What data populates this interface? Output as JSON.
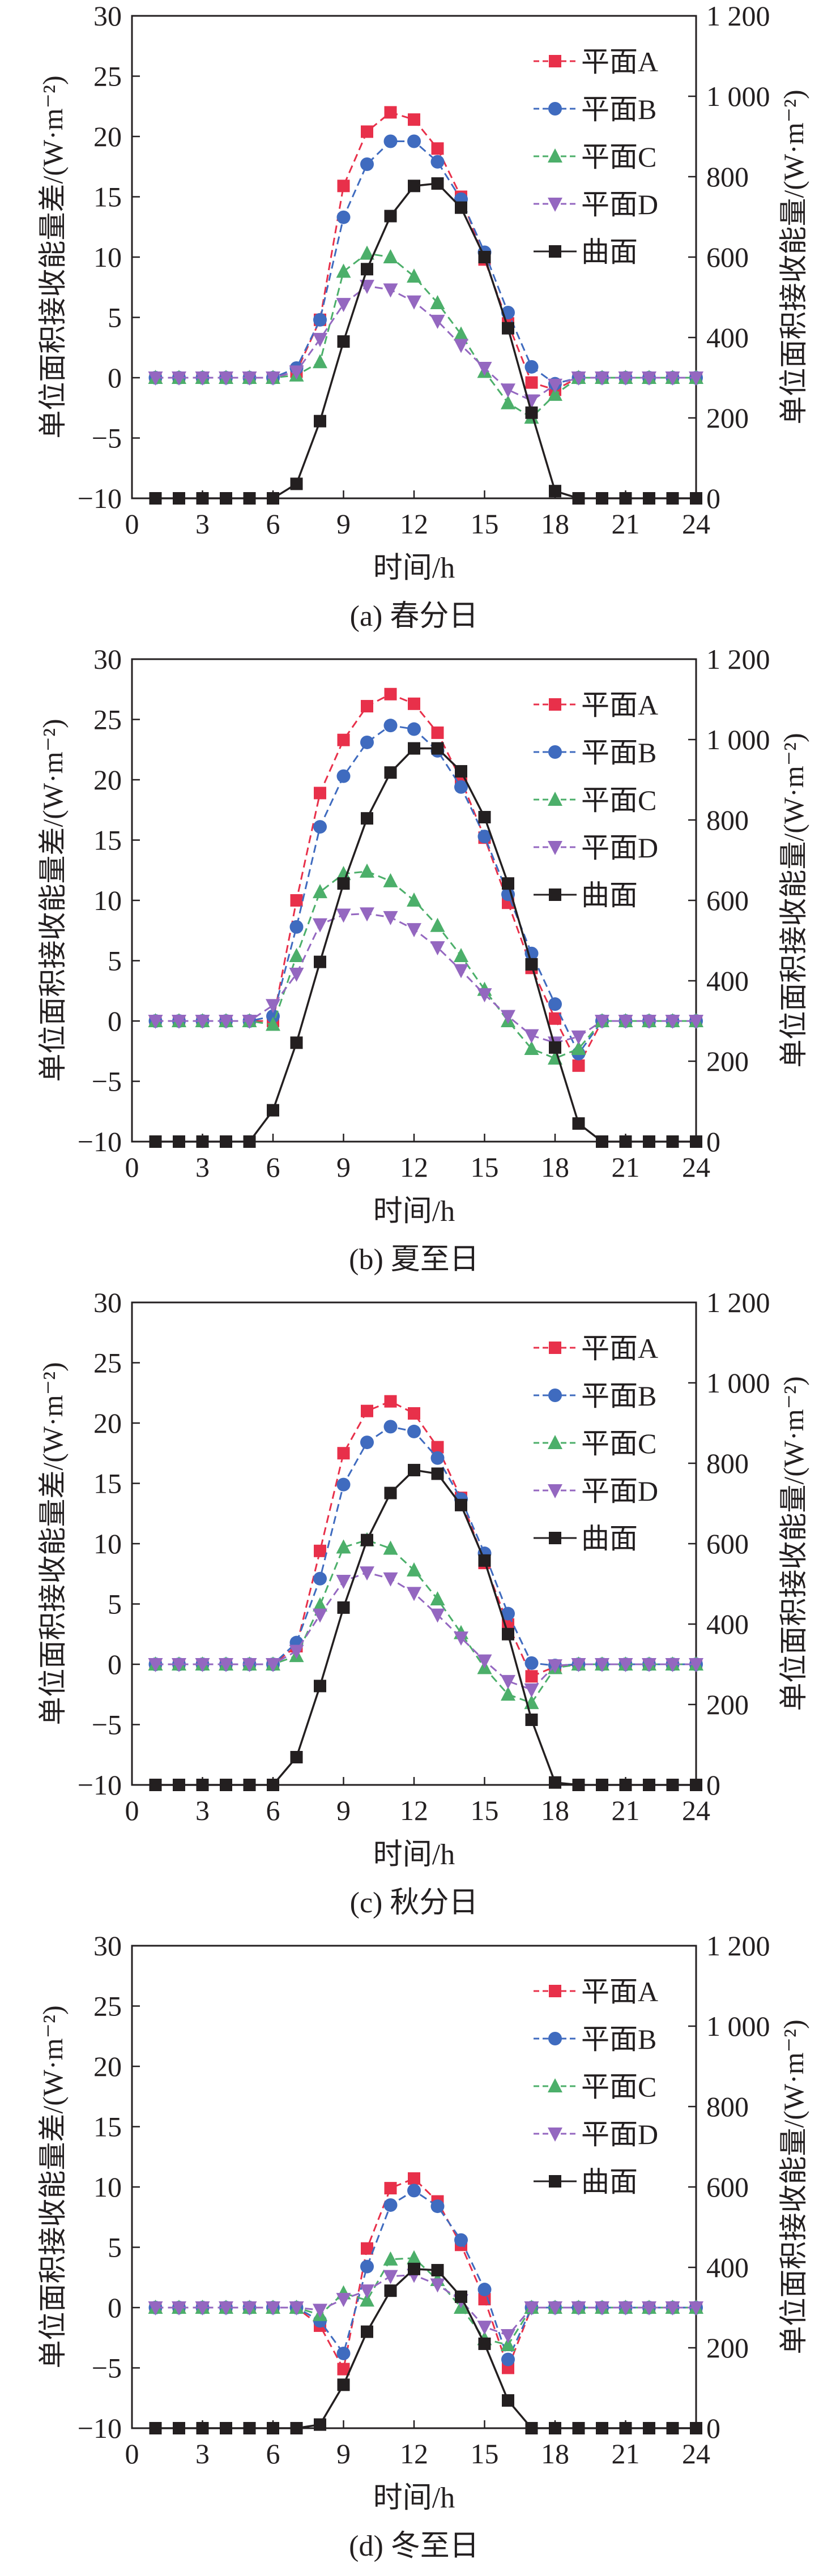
{
  "chart_data": [
    {
      "type": "line",
      "caption": "(a) 春分日",
      "xlabel": "时间/h",
      "ylabel": "单位面积接收能量差/(W·m⁻²)",
      "y2label": "单位面积接收能量/(W·m⁻²)",
      "xlim": [
        0,
        24
      ],
      "ylim": [
        -10,
        30
      ],
      "y2lim": [
        0,
        1200
      ],
      "xticks": [
        "0",
        "3",
        "6",
        "9",
        "12",
        "15",
        "18",
        "21",
        "24"
      ],
      "yticks": [
        "−10",
        "−5",
        "0",
        "5",
        "10",
        "15",
        "20",
        "25",
        "30"
      ],
      "y2ticks": [
        "0",
        "200",
        "400",
        "600",
        "800",
        "1 000",
        "1 200"
      ],
      "legend_position": "top-right",
      "x": [
        1,
        2,
        3,
        4,
        5,
        6,
        7,
        8,
        9,
        10,
        11,
        12,
        13,
        14,
        15,
        16,
        17,
        18,
        19,
        20,
        21,
        22,
        23,
        24
      ],
      "series": [
        {
          "name": "平面A",
          "axis": "left",
          "color": "#e8304a",
          "marker": "square",
          "dash": true,
          "values": [
            0,
            0,
            0,
            0,
            0,
            0,
            0.5,
            4.8,
            15.9,
            20.4,
            22,
            21.4,
            19,
            15,
            9.8,
            4.5,
            -0.4,
            -1,
            0,
            0,
            0,
            0,
            0,
            0
          ]
        },
        {
          "name": "平面B",
          "axis": "left",
          "color": "#3f6bbf",
          "marker": "circle",
          "dash": true,
          "values": [
            0,
            0,
            0,
            0,
            0,
            0,
            0.8,
            4.8,
            13.3,
            17.7,
            19.6,
            19.6,
            17.9,
            14.8,
            10.4,
            5.4,
            0.9,
            -0.5,
            0,
            0,
            0,
            0,
            0,
            0
          ]
        },
        {
          "name": "平面C",
          "axis": "left",
          "color": "#4caf6a",
          "marker": "triangle-up",
          "dash": true,
          "values": [
            0,
            0,
            0,
            0,
            0,
            0,
            0.2,
            1.3,
            8.8,
            10.3,
            10,
            8.4,
            6.2,
            3.6,
            0.5,
            -2.1,
            -3.3,
            -1.4,
            0,
            0,
            0,
            0,
            0,
            0
          ]
        },
        {
          "name": "平面D",
          "axis": "left",
          "color": "#9467c0",
          "marker": "triangle-down",
          "dash": true,
          "values": [
            0,
            0,
            0,
            0,
            0,
            0,
            0.5,
            3.2,
            6.1,
            7.6,
            7.3,
            6.3,
            4.7,
            2.7,
            0.8,
            -1,
            -1.9,
            -0.6,
            0,
            0,
            0,
            0,
            0,
            0
          ]
        },
        {
          "name": "曲面",
          "axis": "right",
          "color": "#231f20",
          "marker": "square",
          "dash": false,
          "values": [
            0,
            0,
            0,
            0,
            0,
            0,
            36,
            192,
            390,
            570,
            702,
            777,
            783,
            723,
            600,
            423,
            213,
            18,
            0,
            0,
            0,
            0,
            0,
            0
          ]
        }
      ]
    },
    {
      "type": "line",
      "caption": "(b) 夏至日",
      "xlabel": "时间/h",
      "ylabel": "单位面积接收能量差/(W·m⁻²)",
      "y2label": "单位面积接收能量/(W·m⁻²)",
      "xlim": [
        0,
        24
      ],
      "ylim": [
        -10,
        30
      ],
      "y2lim": [
        0,
        1200
      ],
      "xticks": [
        "0",
        "3",
        "6",
        "9",
        "12",
        "15",
        "18",
        "21",
        "24"
      ],
      "yticks": [
        "−10",
        "−5",
        "0",
        "5",
        "10",
        "15",
        "20",
        "25",
        "30"
      ],
      "y2ticks": [
        "0",
        "200",
        "400",
        "600",
        "800",
        "1 000",
        "1 200"
      ],
      "legend_position": "top-right",
      "x": [
        1,
        2,
        3,
        4,
        5,
        6,
        7,
        8,
        9,
        10,
        11,
        12,
        13,
        14,
        15,
        16,
        17,
        18,
        19,
        20,
        21,
        22,
        23,
        24
      ],
      "series": [
        {
          "name": "平面A",
          "axis": "left",
          "color": "#e8304a",
          "marker": "square",
          "dash": true,
          "values": [
            0,
            0,
            0,
            0,
            0,
            0,
            10,
            18.9,
            23.3,
            26.1,
            27.1,
            26.3,
            23.9,
            20,
            15.2,
            9.8,
            4.4,
            0.2,
            -3.7,
            0,
            0,
            0,
            0,
            0
          ]
        },
        {
          "name": "平面B",
          "axis": "left",
          "color": "#3f6bbf",
          "marker": "circle",
          "dash": true,
          "values": [
            0,
            0,
            0,
            0,
            0,
            0.4,
            7.8,
            16.1,
            20.3,
            23.1,
            24.5,
            24.2,
            22.4,
            19.4,
            15.3,
            10.5,
            5.6,
            1.4,
            -2.7,
            0,
            0,
            0,
            0,
            0
          ]
        },
        {
          "name": "平面C",
          "axis": "left",
          "color": "#4caf6a",
          "marker": "triangle-up",
          "dash": true,
          "values": [
            0,
            0,
            0,
            0,
            0,
            -0.3,
            5.4,
            10.7,
            12.2,
            12.4,
            11.6,
            10,
            7.9,
            5.4,
            2.6,
            0,
            -2.3,
            -3.1,
            -2.3,
            0,
            0,
            0,
            0,
            0
          ]
        },
        {
          "name": "平面D",
          "axis": "left",
          "color": "#9467c0",
          "marker": "triangle-down",
          "dash": true,
          "values": [
            0,
            0,
            0,
            0,
            0,
            1.3,
            3.9,
            8,
            8.8,
            8.9,
            8.6,
            7.6,
            6.1,
            4.2,
            2.2,
            0.4,
            -1.2,
            -1.8,
            -1.3,
            0,
            0,
            0,
            0,
            0
          ]
        },
        {
          "name": "曲面",
          "axis": "right",
          "color": "#231f20",
          "marker": "square",
          "dash": false,
          "values": [
            0,
            0,
            0,
            0,
            0,
            78,
            246,
            447,
            642,
            804,
            918,
            978,
            978,
            921,
            807,
            642,
            441,
            234,
            45,
            0,
            0,
            0,
            0,
            0
          ]
        }
      ]
    },
    {
      "type": "line",
      "caption": "(c) 秋分日",
      "xlabel": "时间/h",
      "ylabel": "单位面积接收能量差/(W·m⁻²)",
      "y2label": "单位面积接收能量/(W·m⁻²)",
      "xlim": [
        0,
        24
      ],
      "ylim": [
        -10,
        30
      ],
      "y2lim": [
        0,
        1200
      ],
      "xticks": [
        "0",
        "3",
        "6",
        "9",
        "12",
        "15",
        "18",
        "21",
        "24"
      ],
      "yticks": [
        "−10",
        "−5",
        "0",
        "5",
        "10",
        "15",
        "20",
        "25",
        "30"
      ],
      "y2ticks": [
        "0",
        "200",
        "400",
        "600",
        "800",
        "1 000",
        "1 200"
      ],
      "legend_position": "top-right",
      "x": [
        1,
        2,
        3,
        4,
        5,
        6,
        7,
        8,
        9,
        10,
        11,
        12,
        13,
        14,
        15,
        16,
        17,
        18,
        19,
        20,
        21,
        22,
        23,
        24
      ],
      "series": [
        {
          "name": "平面A",
          "axis": "left",
          "color": "#e8304a",
          "marker": "square",
          "dash": true,
          "values": [
            0,
            0,
            0,
            0,
            0,
            0,
            1.5,
            9.4,
            17.5,
            21,
            21.8,
            20.8,
            18,
            13.8,
            8.4,
            3.3,
            -1,
            -0.2,
            0,
            0,
            0,
            0,
            0,
            0
          ]
        },
        {
          "name": "平面B",
          "axis": "left",
          "color": "#3f6bbf",
          "marker": "circle",
          "dash": true,
          "values": [
            0,
            0,
            0,
            0,
            0,
            0,
            1.8,
            7.1,
            14.9,
            18.4,
            19.7,
            19.3,
            17.1,
            13.7,
            9.2,
            4.2,
            0.1,
            -0.1,
            0,
            0,
            0,
            0,
            0,
            0
          ]
        },
        {
          "name": "平面C",
          "axis": "left",
          "color": "#4caf6a",
          "marker": "triangle-up",
          "dash": true,
          "values": [
            0,
            0,
            0,
            0,
            0,
            0,
            0.7,
            4.9,
            9.7,
            10.3,
            9.6,
            7.8,
            5.4,
            2.6,
            -0.3,
            -2.5,
            -3.2,
            -0.3,
            0,
            0,
            0,
            0,
            0,
            0
          ]
        },
        {
          "name": "平面D",
          "axis": "left",
          "color": "#9467c0",
          "marker": "triangle-down",
          "dash": true,
          "values": [
            0,
            0,
            0,
            0,
            0,
            0,
            1.1,
            4.1,
            6.9,
            7.6,
            7.1,
            5.9,
            4.1,
            2.2,
            0.3,
            -1.4,
            -2.1,
            -0.1,
            0,
            0,
            0,
            0,
            0,
            0
          ]
        },
        {
          "name": "曲面",
          "axis": "right",
          "color": "#231f20",
          "marker": "square",
          "dash": false,
          "values": [
            0,
            0,
            0,
            0,
            0,
            0,
            69,
            246,
            441,
            609,
            726,
            783,
            774,
            696,
            558,
            375,
            162,
            6,
            0,
            0,
            0,
            0,
            0,
            0
          ]
        }
      ]
    },
    {
      "type": "line",
      "caption": "(d) 冬至日",
      "xlabel": "时间/h",
      "ylabel": "单位面积接收能量差/(W·m⁻²)",
      "y2label": "单位面积接收能量/(W·m⁻²)",
      "xlim": [
        0,
        24
      ],
      "ylim": [
        -10,
        30
      ],
      "y2lim": [
        0,
        1200
      ],
      "xticks": [
        "0",
        "3",
        "6",
        "9",
        "12",
        "15",
        "18",
        "21",
        "24"
      ],
      "yticks": [
        "−10",
        "−5",
        "0",
        "5",
        "10",
        "15",
        "20",
        "25",
        "30"
      ],
      "y2ticks": [
        "0",
        "200",
        "400",
        "600",
        "800",
        "1 000",
        "1 200"
      ],
      "legend_position": "top-right",
      "x": [
        1,
        2,
        3,
        4,
        5,
        6,
        7,
        8,
        9,
        10,
        11,
        12,
        13,
        14,
        15,
        16,
        17,
        18,
        19,
        20,
        21,
        22,
        23,
        24
      ],
      "series": [
        {
          "name": "平面A",
          "axis": "left",
          "color": "#e8304a",
          "marker": "square",
          "dash": true,
          "values": [
            0,
            0,
            0,
            0,
            0,
            0,
            0,
            -1.5,
            -5.1,
            4.9,
            9.9,
            10.7,
            8.8,
            5.2,
            0.7,
            -5,
            0,
            0,
            0,
            0,
            0,
            0,
            0,
            0
          ]
        },
        {
          "name": "平面B",
          "axis": "left",
          "color": "#3f6bbf",
          "marker": "circle",
          "dash": true,
          "values": [
            0,
            0,
            0,
            0,
            0,
            0,
            0,
            -1.1,
            -3.8,
            3.4,
            8.5,
            9.7,
            8.4,
            5.6,
            1.5,
            -4.3,
            0,
            0,
            0,
            0,
            0,
            0,
            0,
            0
          ]
        },
        {
          "name": "平面C",
          "axis": "left",
          "color": "#4caf6a",
          "marker": "triangle-up",
          "dash": true,
          "values": [
            0,
            0,
            0,
            0,
            0,
            0,
            0,
            -0.6,
            1.2,
            0.6,
            4,
            4.1,
            2.3,
            0,
            -2.6,
            -3.1,
            0,
            0,
            0,
            0,
            0,
            0,
            0,
            0
          ]
        },
        {
          "name": "平面D",
          "axis": "left",
          "color": "#9467c0",
          "marker": "triangle-down",
          "dash": true,
          "values": [
            0,
            0,
            0,
            0,
            0,
            0,
            0,
            -0.2,
            0.7,
            1.4,
            2.6,
            2.7,
            1.9,
            0.6,
            -1.6,
            -2.3,
            0,
            0,
            0,
            0,
            0,
            0,
            0,
            0
          ]
        },
        {
          "name": "曲面",
          "axis": "right",
          "color": "#231f20",
          "marker": "square",
          "dash": false,
          "values": [
            0,
            0,
            0,
            0,
            0,
            0,
            0,
            9,
            108,
            240,
            342,
            396,
            393,
            327,
            210,
            69,
            0,
            0,
            0,
            0,
            0,
            0,
            0,
            0
          ]
        }
      ]
    }
  ]
}
